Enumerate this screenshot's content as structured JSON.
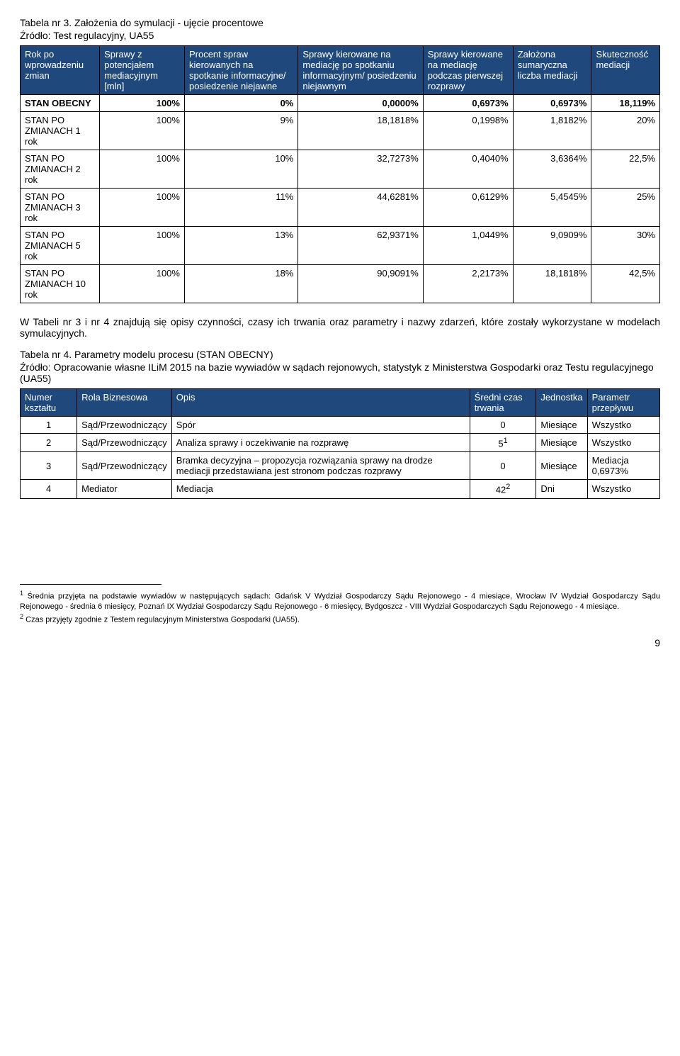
{
  "t1": {
    "caption": "Tabela nr 3. Założenia do symulacji - ujęcie procentowe",
    "source": "Źródło: Test regulacyjny, UA55",
    "headers": [
      "Rok po wprowadzeniu zmian",
      "Sprawy z potencjałem mediacyjnym [mln]",
      "Procent spraw kierowanych na spotkanie informacyjne/ posiedzenie niejawne",
      "Sprawy kierowane na mediację po spotkaniu informacyjnym/ posiedzeniu niejawnym",
      "Sprawy kierowane na mediację podczas pierwszej rozprawy",
      "Założona sumaryczna liczba mediacji",
      "Skuteczność mediacji"
    ],
    "rows": [
      {
        "label": "STAN OBECNY",
        "bold": true,
        "cells": [
          "100%",
          "0%",
          "0,0000%",
          "0,6973%",
          "0,6973%",
          "18,119%"
        ]
      },
      {
        "label": "STAN PO ZMIANACH 1 rok",
        "bold": false,
        "cells": [
          "100%",
          "9%",
          "18,1818%",
          "0,1998%",
          "1,8182%",
          "20%"
        ]
      },
      {
        "label": "STAN PO ZMIANACH 2 rok",
        "bold": false,
        "cells": [
          "100%",
          "10%",
          "32,7273%",
          "0,4040%",
          "3,6364%",
          "22,5%"
        ]
      },
      {
        "label": "STAN PO ZMIANACH 3 rok",
        "bold": false,
        "cells": [
          "100%",
          "11%",
          "44,6281%",
          "0,6129%",
          "5,4545%",
          "25%"
        ]
      },
      {
        "label": "STAN PO ZMIANACH 5 rok",
        "bold": false,
        "cells": [
          "100%",
          "13%",
          "62,9371%",
          "1,0449%",
          "9,0909%",
          "30%"
        ]
      },
      {
        "label": "STAN PO ZMIANACH 10 rok",
        "bold": false,
        "cells": [
          "100%",
          "18%",
          "90,9091%",
          "2,2173%",
          "18,1818%",
          "42,5%"
        ]
      }
    ]
  },
  "para1": "W Tabeli nr 3 i nr 4 znajdują się opisy czynności, czasy ich trwania oraz parametry i nazwy zdarzeń, które zostały wykorzystane w modelach symulacyjnych.",
  "t2": {
    "caption": "Tabela nr 4. Parametry modelu procesu (STAN OBECNY)",
    "source": "Źródło: Opracowanie własne ILiM 2015 na bazie wywiadów w sądach rejonowych, statystyk z Ministerstwa Gospodarki oraz Testu regulacyjnego (UA55)",
    "headers": [
      "Numer kształtu",
      "Rola Biznesowa",
      "Opis",
      "Średni czas trwania",
      "Jednostka",
      "Parametr przepływu"
    ],
    "rows": [
      {
        "n": "1",
        "rola": "Sąd/Przewodniczący",
        "opis": "Spór",
        "czas": "0",
        "czas_sup": "",
        "jedn": "Miesiące",
        "param": "Wszystko"
      },
      {
        "n": "2",
        "rola": "Sąd/Przewodniczący",
        "opis": "Analiza sprawy i oczekiwanie na rozprawę",
        "czas": "5",
        "czas_sup": "1",
        "jedn": "Miesiące",
        "param": "Wszystko"
      },
      {
        "n": "3",
        "rola": "Sąd/Przewodniczący",
        "opis": "Bramka decyzyjna – propozycja rozwiązania sprawy na drodze mediacji przedstawiana jest stronom podczas rozprawy",
        "czas": "0",
        "czas_sup": "",
        "jedn": "Miesiące",
        "param": "Mediacja 0,6973%"
      },
      {
        "n": "4",
        "rola": "Mediator",
        "opis": "Mediacja",
        "czas": "42",
        "czas_sup": "2",
        "jedn": "Dni",
        "param": "Wszystko"
      }
    ]
  },
  "footnote1_sup": "1",
  "footnote1": " Średnia przyjęta na podstawie wywiadów w następujących sądach: Gdańsk V Wydział Gospodarczy Sądu Rejonowego - 4 miesiące, Wrocław IV Wydział Gospodarczy Sądu Rejonowego - średnia 6 miesięcy, Poznań IX Wydział Gospodarczy Sądu Rejonowego - 6 miesięcy, Bydgoszcz - VIII Wydział Gospodarczych Sądu Rejonowego - 4 miesiące.",
  "footnote2_sup": "2",
  "footnote2": " Czas przyjęty zgodnie z Testem regulacyjnym Ministerstwa Gospodarki (UA55).",
  "page_number": "9"
}
